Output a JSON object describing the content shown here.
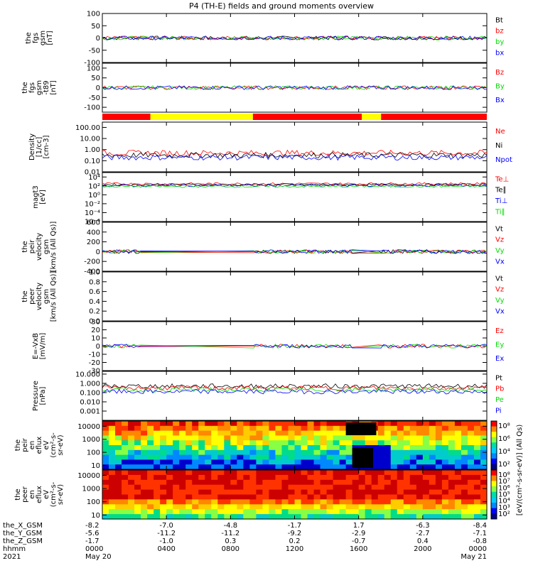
{
  "title": "P4 (TH-E) fields and ground moments overview",
  "colors": {
    "black": "#000000",
    "red": "#ff0000",
    "green": "#00dd00",
    "blue": "#0000ff",
    "yellow": "#ffff00"
  },
  "panels": [
    {
      "id": "fgs",
      "ylabel": [
        "the",
        "fgs",
        "gsm",
        "[nT]"
      ],
      "ticks": [
        "100",
        "50",
        "0",
        "-50",
        "-100"
      ],
      "tickvals": [
        100,
        50,
        0,
        -50,
        -100
      ],
      "ylim": [
        -100,
        100
      ],
      "legend": [
        {
          "label": "Bt",
          "color": "#000000"
        },
        {
          "label": "bz",
          "color": "#ff0000"
        },
        {
          "label": "by",
          "color": "#00dd00"
        },
        {
          "label": "bx",
          "color": "#0000ff"
        }
      ]
    },
    {
      "id": "fgs_t89",
      "ylabel": [
        "the",
        "fgs",
        "gsm",
        "-t89",
        "[nT]"
      ],
      "ticks": [
        "100",
        "50",
        "0",
        "-50",
        "-100"
      ],
      "tickvals": [
        100,
        50,
        0,
        -50,
        -100
      ],
      "ylim": [
        -125,
        125
      ],
      "legend": [
        {
          "label": "Bz",
          "color": "#ff0000"
        },
        {
          "label": "By",
          "color": "#00dd00"
        },
        {
          "label": "Bx",
          "color": "#0000ff"
        }
      ]
    },
    {
      "id": "density",
      "ylabel": [
        "Density",
        "[1/cc]",
        "[cm-3]"
      ],
      "ticks": [
        "100.00",
        "10.00",
        "1.00",
        "0.10",
        "0.01"
      ],
      "tickvals": [
        100,
        10,
        1,
        0.1,
        0.01
      ],
      "ylim": [
        0.01,
        300
      ],
      "log": true,
      "legend": [
        {
          "label": "Ne",
          "color": "#ff0000"
        },
        {
          "label": "Ni",
          "color": "#000000"
        },
        {
          "label": "Npot",
          "color": "#0000ff"
        }
      ]
    },
    {
      "id": "temp",
      "ylabel": [
        "magt3",
        "[eV]"
      ],
      "ticks": [
        "10⁴",
        "10²",
        "10⁰",
        "10⁻²",
        "10⁻⁴",
        "10⁻⁶"
      ],
      "tickvals": [
        10000,
        100,
        1,
        0.01,
        0.0001,
        1e-06
      ],
      "ylim": [
        1e-06,
        100000
      ],
      "log": true,
      "legend": [
        {
          "label": "Te⊥",
          "color": "#ff0000"
        },
        {
          "label": "Te∥",
          "color": "#000000"
        },
        {
          "label": "Ti⊥",
          "color": "#0000ff"
        },
        {
          "label": "Ti∥",
          "color": "#00dd00"
        }
      ]
    },
    {
      "id": "peir_vel",
      "ylabel": [
        "the",
        "peir",
        "velocity",
        "gsm",
        "[km/s (All Qs)]"
      ],
      "ticks": [
        "600",
        "400",
        "200",
        "0",
        "-200",
        "-400"
      ],
      "tickvals": [
        600,
        400,
        200,
        0,
        -200,
        -400
      ],
      "ylim": [
        -400,
        600
      ],
      "legend": [
        {
          "label": "Vt",
          "color": "#000000"
        },
        {
          "label": "Vz",
          "color": "#ff0000"
        },
        {
          "label": "Vy",
          "color": "#00dd00"
        },
        {
          "label": "Vx",
          "color": "#0000ff"
        }
      ]
    },
    {
      "id": "peer_vel",
      "ylabel": [
        "the",
        "peer",
        "velocity",
        "gsm",
        "[km/s (All Qs)]"
      ],
      "ticks": [
        "1.0",
        "0.8",
        "0.6",
        "0.4",
        "0.2",
        "0.0"
      ],
      "tickvals": [
        1.0,
        0.8,
        0.6,
        0.4,
        0.2,
        0.0
      ],
      "ylim": [
        0,
        1
      ],
      "legend": [
        {
          "label": "Vt",
          "color": "#000000"
        },
        {
          "label": "Vz",
          "color": "#ff0000"
        },
        {
          "label": "Vy",
          "color": "#00dd00"
        },
        {
          "label": "Vx",
          "color": "#0000ff"
        }
      ]
    },
    {
      "id": "efield",
      "ylabel": [
        "E=-VxB",
        "[mV/m]"
      ],
      "ticks": [
        "30",
        "20",
        "10",
        "0",
        "-10",
        "-20",
        "-30"
      ],
      "tickvals": [
        30,
        20,
        10,
        0,
        -10,
        -20,
        -30
      ],
      "ylim": [
        -30,
        30
      ],
      "legend": [
        {
          "label": "Ez",
          "color": "#ff0000"
        },
        {
          "label": "Ey",
          "color": "#00dd00"
        },
        {
          "label": "Ex",
          "color": "#0000ff"
        }
      ]
    },
    {
      "id": "pressure",
      "ylabel": [
        "Pressure",
        "[nPa]"
      ],
      "ticks": [
        "10.000",
        "1.000",
        "0.100",
        "0.010",
        "0.001"
      ],
      "tickvals": [
        10,
        1,
        0.1,
        0.01,
        0.001
      ],
      "ylim": [
        0.0001,
        20
      ],
      "log": true,
      "legend": [
        {
          "label": "Pt",
          "color": "#000000"
        },
        {
          "label": "Pb",
          "color": "#ff0000"
        },
        {
          "label": "Pe",
          "color": "#00dd00"
        },
        {
          "label": "Pi",
          "color": "#0000ff"
        }
      ]
    },
    {
      "id": "peir_spec",
      "ylabel": [
        "the",
        "peir",
        "en",
        "eflux",
        "eV",
        "(cm²-s-",
        "sr-eV)"
      ],
      "ticks": [
        "10000",
        "1000",
        "100",
        "10"
      ],
      "tickvals": [
        10000,
        1000,
        100,
        10
      ],
      "ylim": [
        5,
        25000
      ],
      "log": true,
      "spectrogram": true
    },
    {
      "id": "peer_spec",
      "ylabel": [
        "the",
        "peer",
        "en",
        "eflux",
        "eV",
        "(cm²-s-",
        "sr-eV)"
      ],
      "ticks": [
        "10000",
        "1000",
        "100",
        "10"
      ],
      "tickvals": [
        10000,
        1000,
        100,
        10
      ],
      "ylim": [
        5,
        25000
      ],
      "log": true,
      "spectrogram": true
    }
  ],
  "colorbar": {
    "label": "[eV/(cm²-s-sr-eV)] (All Qs)",
    "ticks_upper": [
      "10⁸",
      "10⁶",
      "10⁴",
      "10²"
    ],
    "ticks_lower": [
      "10⁸",
      "10⁷",
      "10⁶",
      "10⁵",
      "10⁴",
      "10³",
      "10²"
    ]
  },
  "mode_bar": {
    "segments": [
      {
        "from": 0,
        "to": 3,
        "color": "#ff0000"
      },
      {
        "from": 3,
        "to": 9.4,
        "color": "#ffff00"
      },
      {
        "from": 9.4,
        "to": 16.2,
        "color": "#ff0000"
      },
      {
        "from": 16.2,
        "to": 17.4,
        "color": "#ffff00"
      },
      {
        "from": 17.4,
        "to": 24,
        "color": "#ff0000"
      }
    ]
  },
  "xaxis": {
    "row_labels": [
      "the_X_GSM",
      "the_Y_GSM",
      "the_Z_GSM",
      "hhmm",
      "2021"
    ],
    "times": [
      0,
      4,
      8,
      12,
      16,
      20,
      24
    ],
    "columns": [
      {
        "x": "-8.2",
        "y": "-5.6",
        "z": "-1.7",
        "hhmm": "0000",
        "date": "May 20"
      },
      {
        "x": "-7.0",
        "y": "-11.2",
        "z": "-1.0",
        "hhmm": "0400",
        "date": ""
      },
      {
        "x": "-4.8",
        "y": "-11.2",
        "z": "0.3",
        "hhmm": "0800",
        "date": ""
      },
      {
        "x": "-1.7",
        "y": "-9.2",
        "z": "0.2",
        "hhmm": "1200",
        "date": ""
      },
      {
        "x": "1.7",
        "y": "-2.9",
        "z": "-0.7",
        "hhmm": "1600",
        "date": ""
      },
      {
        "x": "-6.3",
        "y": "-2.7",
        "z": "0.4",
        "hhmm": "2000",
        "date": ""
      },
      {
        "x": "-8.4",
        "y": "-7.1",
        "z": "-0.8",
        "hhmm": "0000",
        "date": "May 21"
      }
    ]
  }
}
